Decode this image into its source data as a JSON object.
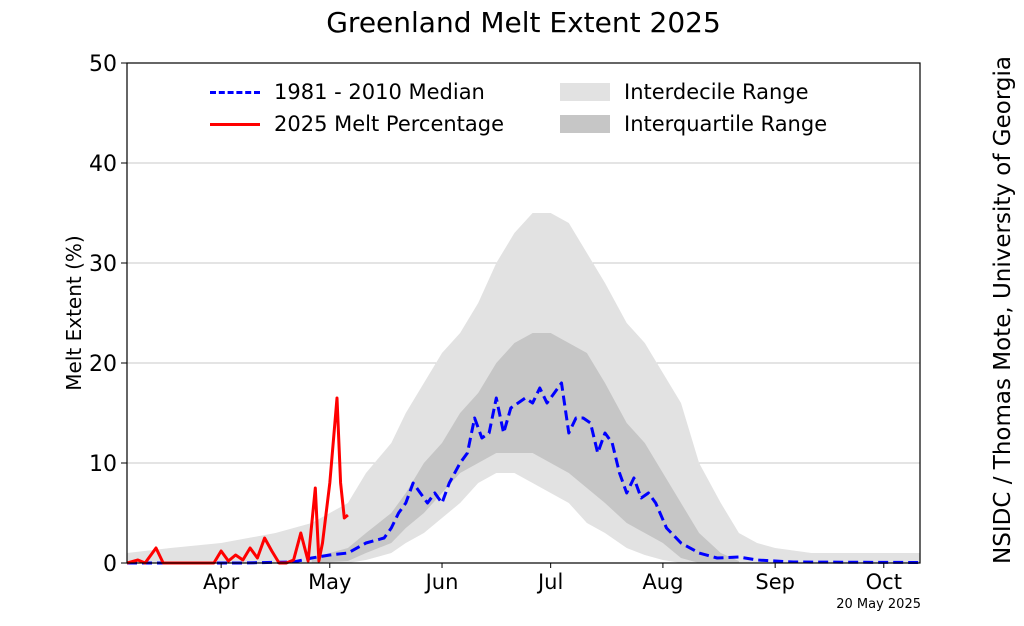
{
  "title": "Greenland Melt Extent 2025",
  "credit": "NSIDC / Thomas Mote, University of Georgia",
  "date_stamp": "20 May 2025",
  "legend": {
    "median": "1981 - 2010 Median",
    "current": "2025 Melt Percentage",
    "interdecile": "Interdecile Range",
    "interquartile": "Interquartile Range"
  },
  "colors": {
    "median": "#0000ff",
    "current": "#ff0000",
    "interdecile": "#e2e2e2",
    "interquartile": "#c6c6c6",
    "grid": "#c8c8c8"
  },
  "chart_data": {
    "type": "area",
    "ylabel": "Melt Extent (%)",
    "xlabel": "",
    "ylim": [
      0,
      50
    ],
    "yticks": [
      0,
      10,
      20,
      30,
      40,
      50
    ],
    "xlim": [
      "Mar 20",
      "Oct 25"
    ],
    "x_tick_labels": [
      "Apr",
      "May",
      "Jun",
      "Jul",
      "Aug",
      "Sep",
      "Oct"
    ],
    "x_tick_dates": [
      "Apr 15",
      "May 15",
      "Jun 15",
      "Jul 15",
      "Aug 15",
      "Sep 15",
      "Oct 15"
    ],
    "grid": "horizontal",
    "legend_placement": "top",
    "series": [
      {
        "name": "Interdecile Range",
        "style": "band",
        "x": [
          "Mar 20",
          "Apr 1",
          "Apr 15",
          "Apr 30",
          "May 10",
          "May 20",
          "May 25",
          "Jun 1",
          "Jun 5",
          "Jun 10",
          "Jun 15",
          "Jun 20",
          "Jun 25",
          "Jun 30",
          "Jul 5",
          "Jul 10",
          "Jul 15",
          "Jul 20",
          "Jul 25",
          "Jul 30",
          "Aug 5",
          "Aug 10",
          "Aug 15",
          "Aug 20",
          "Aug 25",
          "Aug 31",
          "Sep 5",
          "Sep 10",
          "Sep 15",
          "Sep 25",
          "Oct 5",
          "Oct 25"
        ],
        "upper": [
          1,
          1.5,
          2,
          3,
          4,
          6,
          9,
          12,
          15,
          18,
          21,
          23,
          26,
          30,
          33,
          35,
          35,
          34,
          31,
          28,
          24,
          22,
          19,
          16,
          10,
          6,
          3,
          2,
          1.5,
          1,
          1,
          1
        ],
        "lower": [
          0,
          0,
          0,
          0,
          0,
          0,
          0.3,
          1,
          2,
          3,
          4.5,
          6,
          8,
          9,
          9,
          8,
          7,
          6,
          4,
          3,
          1.5,
          0.8,
          0.3,
          0,
          0,
          0,
          0,
          0,
          0,
          0,
          0,
          0
        ]
      },
      {
        "name": "Interquartile Range",
        "style": "band",
        "x": [
          "May 10",
          "May 20",
          "May 25",
          "Jun 1",
          "Jun 5",
          "Jun 10",
          "Jun 15",
          "Jun 20",
          "Jun 25",
          "Jun 30",
          "Jul 5",
          "Jul 10",
          "Jul 15",
          "Jul 20",
          "Jul 25",
          "Jul 30",
          "Aug 5",
          "Aug 10",
          "Aug 15",
          "Aug 20",
          "Aug 25",
          "Aug 31",
          "Sep 5"
        ],
        "upper": [
          0.5,
          1.5,
          3,
          5,
          7,
          10,
          12,
          15,
          17,
          20,
          22,
          23,
          23,
          22,
          21,
          18,
          14,
          12,
          9,
          6,
          3,
          1,
          0.2
        ],
        "lower": [
          0,
          0.2,
          1,
          2,
          3.5,
          5,
          7,
          9,
          10,
          11,
          11,
          11,
          10,
          9,
          7.5,
          6,
          4,
          3,
          2,
          0.5,
          0,
          0,
          0
        ]
      },
      {
        "name": "1981 - 2010 Median",
        "style": "dashed",
        "x": [
          "Mar 20",
          "Apr 20",
          "May 5",
          "May 10",
          "May 15",
          "May 20",
          "May 25",
          "May 30",
          "Jun 1",
          "Jun 3",
          "Jun 5",
          "Jun 7",
          "Jun 9",
          "Jun 11",
          "Jun 13",
          "Jun 15",
          "Jun 17",
          "Jun 20",
          "Jun 22",
          "Jun 24",
          "Jun 26",
          "Jun 28",
          "Jun 30",
          "Jul 2",
          "Jul 4",
          "Jul 6",
          "Jul 8",
          "Jul 10",
          "Jul 12",
          "Jul 14",
          "Jul 16",
          "Jul 18",
          "Jul 20",
          "Jul 22",
          "Jul 24",
          "Jul 26",
          "Jul 28",
          "Jul 30",
          "Aug 1",
          "Aug 3",
          "Aug 5",
          "Aug 7",
          "Aug 9",
          "Aug 11",
          "Aug 13",
          "Aug 16",
          "Aug 20",
          "Aug 25",
          "Aug 30",
          "Sep 5",
          "Sep 10",
          "Sep 20",
          "Oct 25"
        ],
        "y": [
          0,
          0,
          0.1,
          0.5,
          0.8,
          1,
          2,
          2.5,
          3.5,
          5,
          6,
          8,
          7,
          6,
          7,
          6,
          8,
          10,
          11,
          14.5,
          12.5,
          13,
          16.5,
          13,
          15.5,
          16,
          16.5,
          16,
          17.5,
          16,
          17,
          18,
          13,
          14.5,
          14.5,
          14,
          11,
          13,
          12,
          9,
          7,
          8.5,
          6.5,
          7,
          6,
          3.5,
          2,
          1,
          0.5,
          0.6,
          0.3,
          0.1,
          0.05
        ]
      },
      {
        "name": "2025 Melt Percentage",
        "style": "solid",
        "x": [
          "Mar 20",
          "Mar 23",
          "Mar 25",
          "Mar 28",
          "Mar 30",
          "Apr 1",
          "Apr 5",
          "Apr 10",
          "Apr 13",
          "Apr 15",
          "Apr 17",
          "Apr 19",
          "Apr 21",
          "Apr 23",
          "Apr 25",
          "Apr 27",
          "Apr 29",
          "May 1",
          "May 3",
          "May 5",
          "May 7",
          "May 9",
          "May 11",
          "May 12",
          "May 13",
          "May 15",
          "May 17",
          "May 18",
          "May 19",
          "May 20"
        ],
        "y": [
          0,
          0.3,
          0,
          1.5,
          0,
          0,
          0,
          0,
          0,
          1.2,
          0.2,
          0.8,
          0.3,
          1.5,
          0.5,
          2.5,
          1.2,
          0,
          0,
          0.3,
          3,
          0.2,
          7.5,
          0.2,
          2,
          8,
          16.5,
          8,
          4.5,
          4.8
        ]
      }
    ]
  }
}
